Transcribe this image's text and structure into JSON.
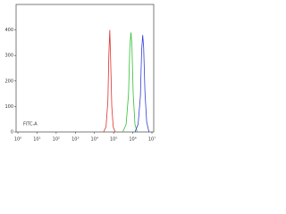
{
  "chart_data": {
    "type": "line",
    "x_label": "FITC-A",
    "x_log": true,
    "xlim": [
      1,
      10000000
    ],
    "xticks": [
      {
        "value": 1,
        "label": "10⁰"
      },
      {
        "value": 10,
        "label": "10¹"
      },
      {
        "value": 100,
        "label": "10²"
      },
      {
        "value": 1000,
        "label": "10³"
      },
      {
        "value": 10000,
        "label": "10⁴"
      },
      {
        "value": 100000,
        "label": "10⁵"
      },
      {
        "value": 1000000,
        "label": "10⁶"
      },
      {
        "value": 10000000,
        "label": "10⁷"
      }
    ],
    "ylim": [
      0,
      500
    ],
    "yticks": [
      0,
      100,
      200,
      300,
      400
    ],
    "series": [
      {
        "color": "#e03030",
        "x": [
          30000,
          40000,
          50000,
          56000,
          63000,
          70000,
          80000,
          95000,
          120000
        ],
        "values": [
          0,
          20,
          120,
          300,
          400,
          280,
          100,
          20,
          0
        ]
      },
      {
        "color": "#30c030",
        "x": [
          300000,
          450000,
          600000,
          700000,
          800000,
          900000,
          1050000,
          1300000,
          1700000
        ],
        "values": [
          0,
          30,
          150,
          330,
          390,
          340,
          150,
          30,
          0
        ]
      },
      {
        "color": "#3040d0",
        "x": [
          1300000,
          1900000,
          2500000,
          2900000,
          3300000,
          3700000,
          4300000,
          5300000,
          7000000
        ],
        "values": [
          0,
          30,
          140,
          320,
          380,
          330,
          160,
          40,
          0
        ]
      }
    ]
  }
}
